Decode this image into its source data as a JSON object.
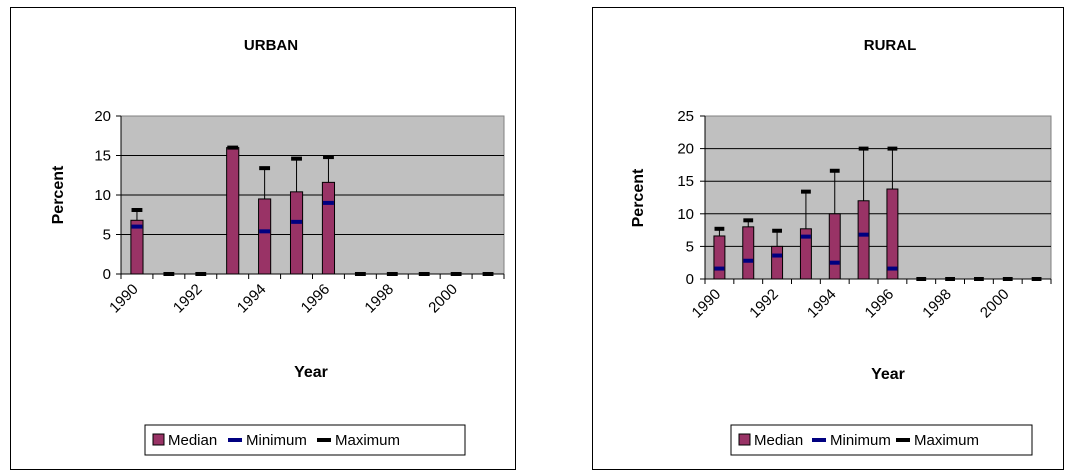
{
  "chart_data": [
    {
      "type": "bar",
      "title": "URBAN",
      "xlabel": "Year",
      "ylabel": "Percent",
      "ylim": [
        0,
        20
      ],
      "yticks": [
        0,
        5,
        10,
        15,
        20
      ],
      "xticks": [
        "1990",
        "1992",
        "1994",
        "1996",
        "1998",
        "2000"
      ],
      "x": [
        1990,
        1991,
        1992,
        1993,
        1994,
        1995,
        1996,
        1997,
        1998,
        1999,
        2000,
        2001
      ],
      "grid": true,
      "legend_position": "bottom",
      "series": [
        {
          "name": "Median",
          "values": [
            6.8,
            0,
            0,
            16,
            9.5,
            10.4,
            11.6,
            0,
            0,
            0,
            0,
            0
          ]
        },
        {
          "name": "Minimum",
          "values": [
            6.0,
            0,
            0,
            16,
            5.4,
            6.6,
            9.0,
            0,
            0,
            0,
            0,
            0
          ]
        },
        {
          "name": "Maximum",
          "values": [
            8.1,
            0,
            0,
            16,
            13.4,
            14.6,
            14.8,
            0,
            0,
            0,
            0,
            0
          ]
        }
      ]
    },
    {
      "type": "bar",
      "title": "RURAL",
      "xlabel": "Year",
      "ylabel": "Percent",
      "ylim": [
        0,
        25
      ],
      "yticks": [
        0,
        5,
        10,
        15,
        20,
        25
      ],
      "xticks": [
        "1990",
        "1992",
        "1994",
        "1996",
        "1998",
        "2000"
      ],
      "x": [
        1990,
        1991,
        1992,
        1993,
        1994,
        1995,
        1996,
        1997,
        1998,
        1999,
        2000,
        2001
      ],
      "grid": true,
      "legend_position": "bottom",
      "series": [
        {
          "name": "Median",
          "values": [
            6.6,
            8.0,
            5.0,
            7.7,
            10.0,
            12.0,
            13.8,
            0,
            0,
            0,
            0,
            0
          ]
        },
        {
          "name": "Minimum",
          "values": [
            1.6,
            2.8,
            3.6,
            6.5,
            2.5,
            6.8,
            1.6,
            0,
            0,
            0,
            0,
            0
          ]
        },
        {
          "name": "Maximum",
          "values": [
            7.7,
            9.0,
            7.4,
            13.4,
            16.6,
            20.0,
            20.0,
            0,
            0,
            0,
            0,
            0
          ]
        }
      ]
    }
  ],
  "colors": {
    "median_fill": "#993366",
    "minimum": "#000080",
    "maximum": "#000000",
    "plot_bg": "#c0c0c0"
  }
}
